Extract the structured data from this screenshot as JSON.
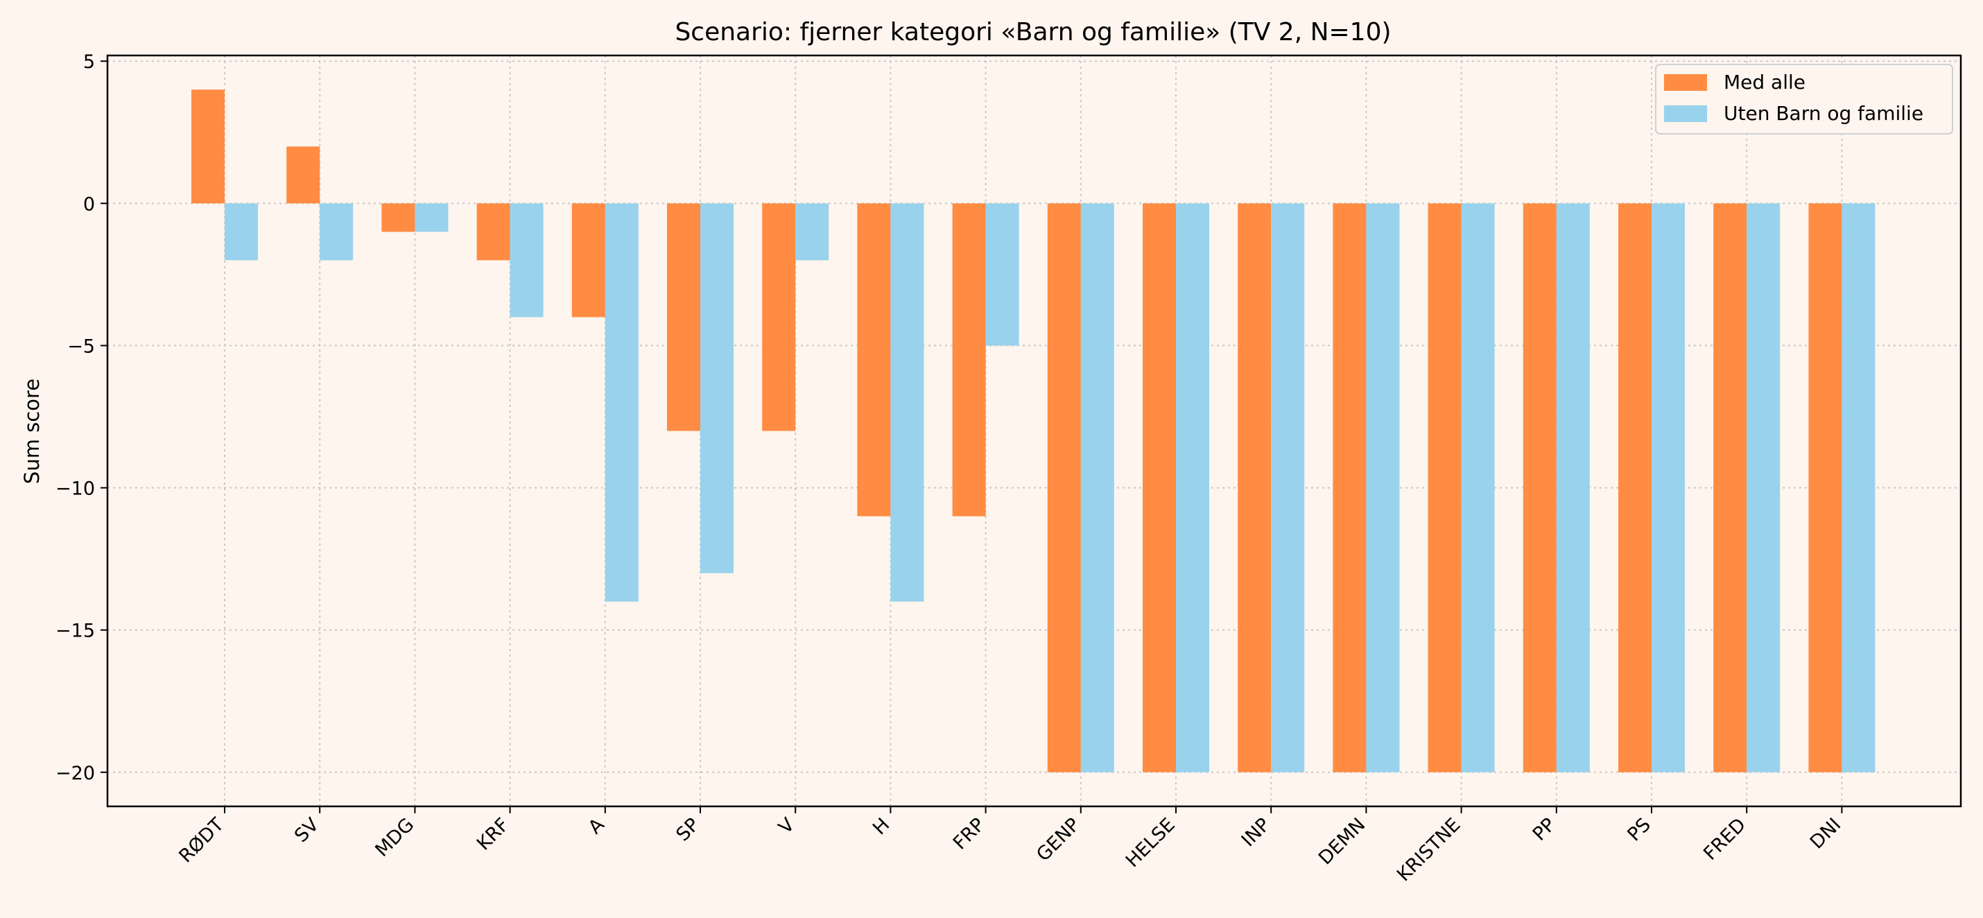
{
  "chart_data": {
    "type": "bar",
    "title": "Scenario: fjerner kategori «Barn og familie» (TV 2, N=10)",
    "xlabel": "",
    "ylabel": "Sum score",
    "categories": [
      "RØDT",
      "SV",
      "MDG",
      "KRF",
      "A",
      "SP",
      "V",
      "H",
      "FRP",
      "GENP",
      "HELSE",
      "INP",
      "DEMN",
      "KRISTNE",
      "PP",
      "PS",
      "FRED",
      "DNI"
    ],
    "series": [
      {
        "name": "Med alle",
        "color": "#ff8c42",
        "values": [
          4,
          2,
          -1,
          -2,
          -4,
          -8,
          -8,
          -11,
          -11,
          -20,
          -20,
          -20,
          -20,
          -20,
          -20,
          -20,
          -20,
          -20
        ]
      },
      {
        "name": "Uten Barn og familie",
        "color": "#99d2ec",
        "values": [
          -2,
          -2,
          -1,
          -4,
          -14,
          -13,
          -2,
          -14,
          -5,
          -20,
          -20,
          -20,
          -20,
          -20,
          -20,
          -20,
          -20,
          -20
        ]
      }
    ],
    "yticks": [
      5,
      0,
      -5,
      -10,
      -15,
      -20
    ],
    "ylim": [
      -21.2,
      5.2
    ],
    "grid": true,
    "legend_position": "top-right"
  }
}
